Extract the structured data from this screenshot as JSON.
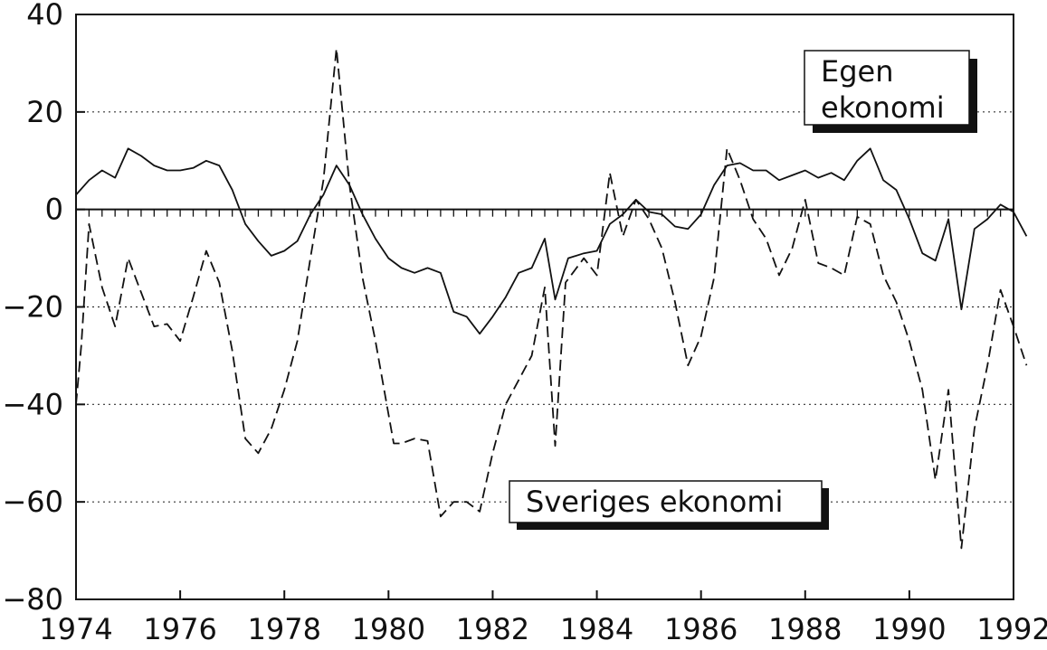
{
  "chart_data": {
    "type": "line",
    "title": "",
    "xlabel": "",
    "ylabel": "",
    "xlim": [
      1974,
      1992
    ],
    "ylim": [
      -80,
      40
    ],
    "x_ticks": [
      1974,
      1976,
      1978,
      1980,
      1982,
      1984,
      1986,
      1988,
      1990,
      1992
    ],
    "y_ticks": [
      40,
      20,
      0,
      -20,
      -40,
      -60,
      -80
    ],
    "x_tick_labels": [
      "1974",
      "1976",
      "1978",
      "1980",
      "1982",
      "1984",
      "1986",
      "1988",
      "1990",
      "1992"
    ],
    "y_tick_labels": [
      "40",
      "20",
      "0",
      "−20",
      "−40",
      "−60",
      "−80"
    ],
    "grid": "horizontal dotted",
    "zero_line": true,
    "series": [
      {
        "name": "Egen ekonomi",
        "style": "solid",
        "color": "#111111",
        "points": [
          [
            1974.0,
            3
          ],
          [
            1974.25,
            6
          ],
          [
            1974.5,
            8
          ],
          [
            1974.75,
            6.5
          ],
          [
            1975.0,
            12.5
          ],
          [
            1975.25,
            11
          ],
          [
            1975.5,
            9
          ],
          [
            1975.75,
            8
          ],
          [
            1976.0,
            8
          ],
          [
            1976.25,
            8.5
          ],
          [
            1976.5,
            10
          ],
          [
            1976.75,
            9
          ],
          [
            1977.0,
            4
          ],
          [
            1977.25,
            -3
          ],
          [
            1977.5,
            -6.5
          ],
          [
            1977.75,
            -9.5
          ],
          [
            1978.0,
            -8.5
          ],
          [
            1978.25,
            -6.5
          ],
          [
            1978.5,
            -1
          ],
          [
            1978.75,
            3
          ],
          [
            1979.0,
            9
          ],
          [
            1979.25,
            5
          ],
          [
            1979.5,
            -1
          ],
          [
            1979.75,
            -6
          ],
          [
            1980.0,
            -10
          ],
          [
            1980.25,
            -12
          ],
          [
            1980.5,
            -13
          ],
          [
            1980.75,
            -12
          ],
          [
            1981.0,
            -13
          ],
          [
            1981.25,
            -21
          ],
          [
            1981.5,
            -22
          ],
          [
            1981.75,
            -25.5
          ],
          [
            1982.0,
            -22
          ],
          [
            1982.25,
            -18
          ],
          [
            1982.5,
            -13
          ],
          [
            1982.75,
            -12
          ],
          [
            1983.0,
            -6
          ],
          [
            1983.2,
            -18.5
          ],
          [
            1983.45,
            -10
          ],
          [
            1983.75,
            -9
          ],
          [
            1984.0,
            -8.5
          ],
          [
            1984.25,
            -3
          ],
          [
            1984.5,
            -1
          ],
          [
            1984.75,
            2
          ],
          [
            1985.0,
            -0.5
          ],
          [
            1985.25,
            -1
          ],
          [
            1985.5,
            -3.5
          ],
          [
            1985.75,
            -4
          ],
          [
            1986.0,
            -1
          ],
          [
            1986.25,
            5
          ],
          [
            1986.5,
            9
          ],
          [
            1986.75,
            9.5
          ],
          [
            1987.0,
            8
          ],
          [
            1987.25,
            8
          ],
          [
            1987.5,
            6
          ],
          [
            1987.75,
            7
          ],
          [
            1988.0,
            8
          ],
          [
            1988.25,
            6.5
          ],
          [
            1988.5,
            7.5
          ],
          [
            1988.75,
            6
          ],
          [
            1989.0,
            10
          ],
          [
            1989.25,
            12.5
          ],
          [
            1989.5,
            6
          ],
          [
            1989.75,
            4
          ],
          [
            1990.0,
            -2
          ],
          [
            1990.25,
            -9
          ],
          [
            1990.5,
            -10.5
          ],
          [
            1990.75,
            -2
          ],
          [
            1991.0,
            -20.5
          ],
          [
            1991.25,
            -4
          ],
          [
            1991.5,
            -2
          ],
          [
            1991.75,
            1
          ],
          [
            1992.0,
            -0.5
          ],
          [
            1992.25,
            -5.5
          ]
        ]
      },
      {
        "name": "Sveriges ekonomi",
        "style": "dashed",
        "color": "#111111",
        "points": [
          [
            1974.0,
            -40
          ],
          [
            1974.1,
            -28
          ],
          [
            1974.25,
            -3
          ],
          [
            1974.5,
            -16
          ],
          [
            1974.75,
            -24
          ],
          [
            1975.0,
            -10
          ],
          [
            1975.25,
            -17
          ],
          [
            1975.5,
            -24
          ],
          [
            1975.75,
            -23.5
          ],
          [
            1976.0,
            -27
          ],
          [
            1976.25,
            -18
          ],
          [
            1976.5,
            -8.5
          ],
          [
            1976.75,
            -15
          ],
          [
            1977.0,
            -29
          ],
          [
            1977.25,
            -47
          ],
          [
            1977.5,
            -50
          ],
          [
            1977.75,
            -45
          ],
          [
            1978.0,
            -37
          ],
          [
            1978.25,
            -27
          ],
          [
            1978.5,
            -10
          ],
          [
            1978.75,
            6
          ],
          [
            1979.0,
            33
          ],
          [
            1979.25,
            5
          ],
          [
            1979.5,
            -14
          ],
          [
            1979.75,
            -27
          ],
          [
            1980.0,
            -42
          ],
          [
            1980.1,
            -48
          ],
          [
            1980.25,
            -48
          ],
          [
            1980.5,
            -47
          ],
          [
            1980.75,
            -47.5
          ],
          [
            1981.0,
            -63
          ],
          [
            1981.25,
            -60
          ],
          [
            1981.5,
            -60
          ],
          [
            1981.75,
            -62
          ],
          [
            1982.0,
            -50
          ],
          [
            1982.25,
            -40
          ],
          [
            1982.5,
            -35
          ],
          [
            1982.75,
            -30
          ],
          [
            1983.0,
            -16
          ],
          [
            1983.2,
            -48.5
          ],
          [
            1983.4,
            -15
          ],
          [
            1983.75,
            -10
          ],
          [
            1984.0,
            -13.5
          ],
          [
            1984.25,
            7.5
          ],
          [
            1984.5,
            -5.5
          ],
          [
            1984.75,
            2
          ],
          [
            1985.0,
            -2
          ],
          [
            1985.25,
            -8
          ],
          [
            1985.5,
            -19
          ],
          [
            1985.75,
            -32
          ],
          [
            1986.0,
            -26
          ],
          [
            1986.25,
            -14
          ],
          [
            1986.5,
            12.5
          ],
          [
            1986.75,
            6
          ],
          [
            1987.0,
            -2
          ],
          [
            1987.25,
            -6
          ],
          [
            1987.5,
            -13.5
          ],
          [
            1987.75,
            -8
          ],
          [
            1988.0,
            2
          ],
          [
            1988.25,
            -11
          ],
          [
            1988.5,
            -12
          ],
          [
            1988.75,
            -13.5
          ],
          [
            1989.0,
            -1.5
          ],
          [
            1989.25,
            -3
          ],
          [
            1989.5,
            -13.5
          ],
          [
            1989.75,
            -19
          ],
          [
            1990.0,
            -27
          ],
          [
            1990.25,
            -37
          ],
          [
            1990.5,
            -55.5
          ],
          [
            1990.75,
            -37
          ],
          [
            1991.0,
            -69.5
          ],
          [
            1991.25,
            -45
          ],
          [
            1991.5,
            -32
          ],
          [
            1991.75,
            -16.5
          ],
          [
            1992.0,
            -24
          ],
          [
            1992.25,
            -32
          ]
        ]
      }
    ],
    "annotations": [
      {
        "lines": [
          "Egen",
          "ekonomi"
        ],
        "series": "Egen ekonomi"
      },
      {
        "lines": [
          "Sveriges ekonomi"
        ],
        "series": "Sveriges ekonomi"
      }
    ]
  }
}
